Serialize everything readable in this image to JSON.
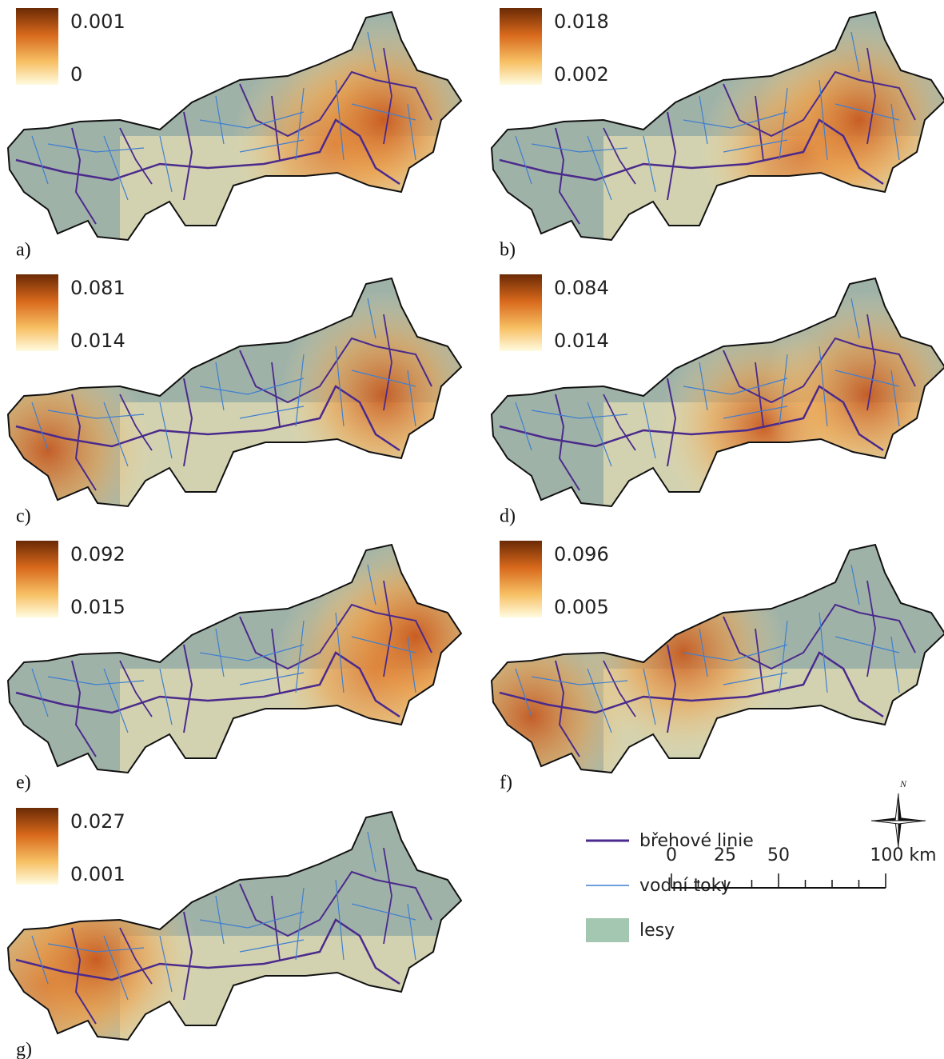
{
  "panels": [
    {
      "label": "a)",
      "max": "0.001",
      "min": "0"
    },
    {
      "label": "b)",
      "max": "0.018",
      "min": "0.002"
    },
    {
      "label": "c)",
      "max": "0.081",
      "min": "0.014"
    },
    {
      "label": "d)",
      "max": "0.084",
      "min": "0.014"
    },
    {
      "label": "e)",
      "max": "0.092",
      "min": "0.015"
    },
    {
      "label": "f)",
      "max": "0.096",
      "min": "0.005"
    },
    {
      "label": "g)",
      "max": "0.027",
      "min": "0.001"
    }
  ],
  "legend": {
    "items": [
      "břehové linie",
      "vodní toky",
      "lesy"
    ]
  },
  "north": "N",
  "scale": {
    "labels": [
      "0",
      "25",
      "50",
      "100 km"
    ]
  }
}
